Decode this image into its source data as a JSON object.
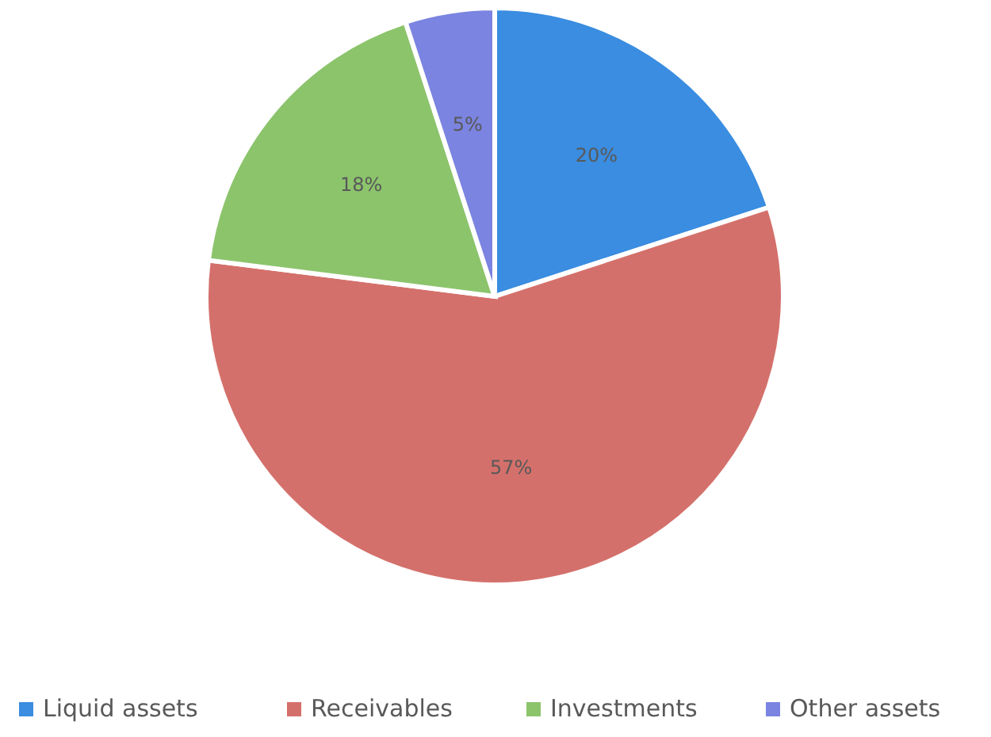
{
  "chart_data": {
    "type": "pie",
    "categories": [
      "Liquid assets",
      "Receivables",
      "Investments",
      "Other assets"
    ],
    "values": [
      20,
      57,
      18,
      5
    ],
    "colors": [
      "#3a8de0",
      "#d4706b",
      "#8cc46c",
      "#7b84e0"
    ],
    "value_labels": [
      "20%",
      "57%",
      "18%",
      "5%"
    ],
    "legend": "bottom"
  }
}
